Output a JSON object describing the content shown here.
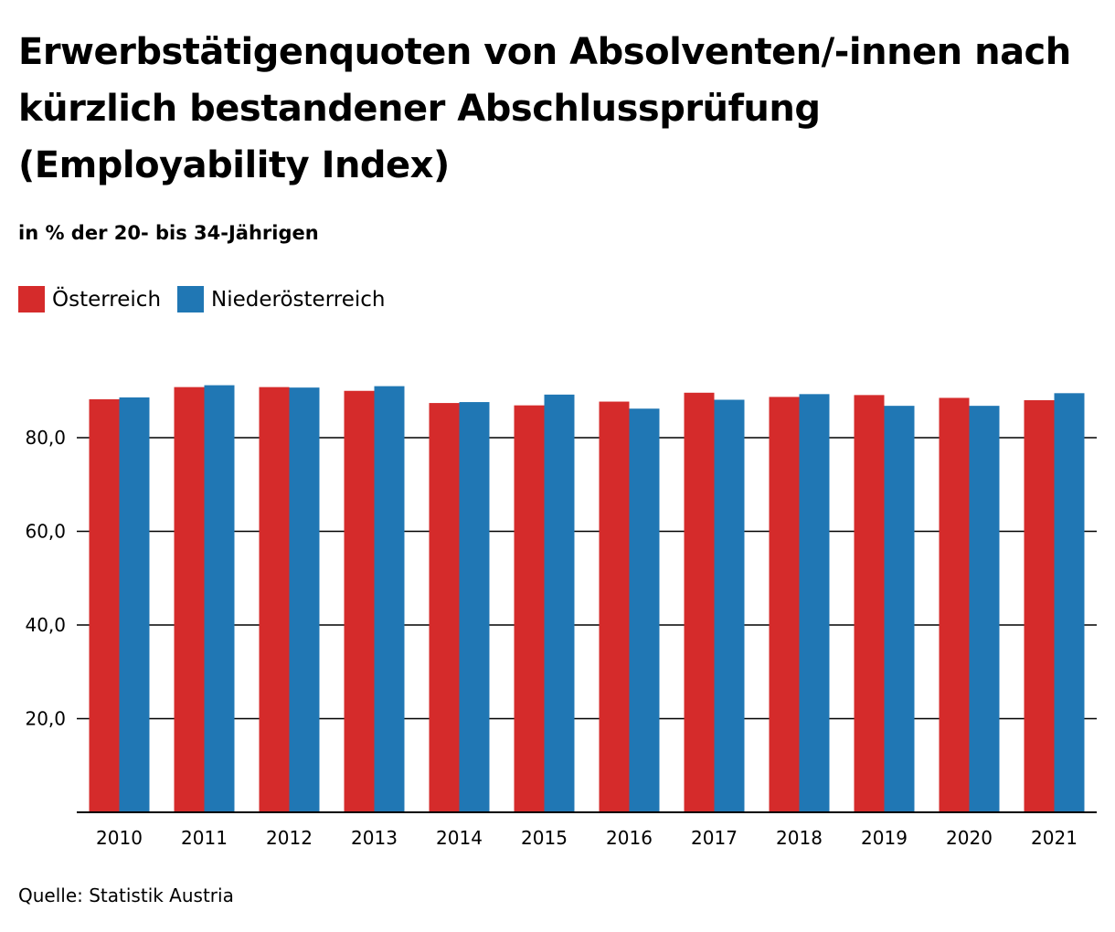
{
  "chart_data": {
    "type": "bar",
    "title": "Erwerbstätigenquoten von Absolventen/-innen nach kürzlich bestandener Abschlussprüfung (Employability Index)",
    "subtitle": "in % der 20- bis 34-Jährigen",
    "xlabel": "",
    "ylabel": "",
    "ylim": [
      0,
      100
    ],
    "yticks": [
      20,
      40,
      60,
      80
    ],
    "ytick_labels": [
      "20,0",
      "40,0",
      "60,0",
      "80,0"
    ],
    "grid": true,
    "legend_position": "top-left",
    "categories": [
      "2010",
      "2011",
      "2012",
      "2013",
      "2014",
      "2015",
      "2016",
      "2017",
      "2018",
      "2019",
      "2020",
      "2021"
    ],
    "series": [
      {
        "name": "Österreich",
        "color": "#d52b2b",
        "values": [
          88.2,
          90.8,
          90.8,
          90.0,
          87.4,
          86.9,
          87.7,
          89.6,
          88.7,
          89.1,
          88.5,
          88.0
        ]
      },
      {
        "name": "Niederösterreich",
        "color": "#2077b4",
        "values": [
          88.6,
          91.2,
          90.7,
          91.0,
          87.6,
          89.2,
          86.2,
          88.1,
          89.3,
          86.8,
          86.8,
          89.5
        ]
      }
    ],
    "source": "Quelle: Statistik Austria"
  }
}
